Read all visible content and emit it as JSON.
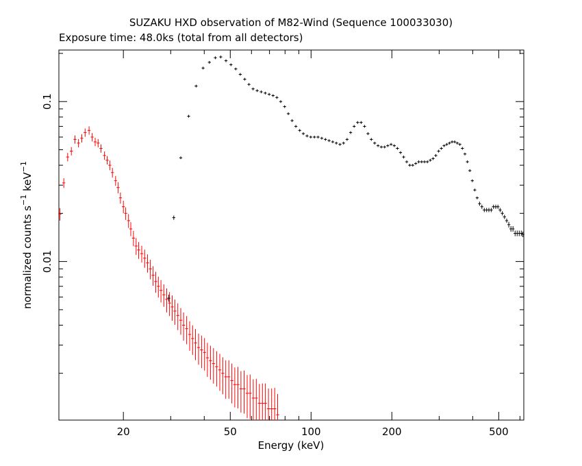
{
  "chart_data": {
    "type": "scatter",
    "title": "SUZAKU HXD observation of M82-Wind (Sequence 100033030)",
    "subtitle": "Exposure time: 48.0ks (total from all detectors)",
    "xlabel": "Energy (keV)",
    "ylabel": {
      "base": "normalized counts s",
      "sup1": "−1",
      "mid": " keV",
      "sup2": "−1"
    },
    "x_scale": "log",
    "y_scale": "log",
    "xlim": [
      11.5,
      620
    ],
    "ylim": [
      0.00102,
      0.21
    ],
    "x_ticks": [
      {
        "value": 20,
        "label": "20"
      },
      {
        "value": 50,
        "label": "50"
      },
      {
        "value": 100,
        "label": "100"
      },
      {
        "value": 200,
        "label": "200"
      },
      {
        "value": 500,
        "label": "500"
      }
    ],
    "y_ticks": [
      {
        "value": 0.01,
        "label": "0.01"
      },
      {
        "value": 0.1,
        "label": "0.1"
      }
    ],
    "grid": false,
    "series": [
      {
        "name": "",
        "color": "#ff0000",
        "kind": "pin",
        "points": [
          [
            11.6,
            0.0198,
            0.09
          ],
          [
            12.0,
            0.031,
            0.07
          ],
          [
            12.4,
            0.045,
            0.06
          ],
          [
            12.8,
            0.049,
            0.06
          ],
          [
            13.2,
            0.058,
            0.06
          ],
          [
            13.6,
            0.055,
            0.06
          ],
          [
            14.0,
            0.059,
            0.06
          ],
          [
            14.4,
            0.064,
            0.06
          ],
          [
            14.9,
            0.066,
            0.06
          ],
          [
            15.3,
            0.06,
            0.06
          ],
          [
            15.7,
            0.056,
            0.06
          ],
          [
            16.1,
            0.055,
            0.06
          ],
          [
            16.5,
            0.051,
            0.06
          ],
          [
            17.0,
            0.046,
            0.06
          ],
          [
            17.4,
            0.043,
            0.06
          ],
          [
            17.8,
            0.04,
            0.07
          ],
          [
            18.2,
            0.036,
            0.07
          ],
          [
            18.7,
            0.032,
            0.07
          ],
          [
            19.1,
            0.029,
            0.08
          ],
          [
            19.5,
            0.025,
            0.08
          ],
          [
            20.0,
            0.022,
            0.09
          ],
          [
            20.4,
            0.02,
            0.09
          ],
          [
            20.9,
            0.018,
            0.1
          ],
          [
            21.3,
            0.016,
            0.1
          ],
          [
            21.8,
            0.014,
            0.11
          ],
          [
            22.3,
            0.0125,
            0.12
          ],
          [
            22.8,
            0.0118,
            0.12
          ],
          [
            23.4,
            0.0112,
            0.12
          ],
          [
            24.0,
            0.0105,
            0.13
          ],
          [
            24.6,
            0.0098,
            0.13
          ],
          [
            25.2,
            0.009,
            0.14
          ],
          [
            25.8,
            0.0082,
            0.14
          ],
          [
            26.4,
            0.0075,
            0.15
          ],
          [
            27.0,
            0.007,
            0.15
          ],
          [
            27.6,
            0.0066,
            0.16
          ],
          [
            28.3,
            0.0062,
            0.16
          ],
          [
            29.0,
            0.0058,
            0.17
          ],
          [
            29.7,
            0.0055,
            0.17
          ],
          [
            30.4,
            0.0052,
            0.18
          ],
          [
            31.1,
            0.0049,
            0.18
          ],
          [
            31.9,
            0.0046,
            0.19
          ],
          [
            32.7,
            0.0043,
            0.19
          ],
          [
            33.5,
            0.004,
            0.2
          ],
          [
            34.4,
            0.0038,
            0.2
          ],
          [
            35.3,
            0.0035,
            0.21
          ],
          [
            36.2,
            0.0033,
            0.21
          ],
          [
            37.1,
            0.0031,
            0.22
          ],
          [
            38.1,
            0.0029,
            0.22
          ],
          [
            39.1,
            0.0028,
            0.23
          ],
          [
            40.1,
            0.0027,
            0.23
          ],
          [
            41.1,
            0.0025,
            0.24
          ],
          [
            42.2,
            0.0024,
            0.24
          ],
          [
            43.3,
            0.0023,
            0.25
          ],
          [
            44.5,
            0.0022,
            0.25
          ],
          [
            45.7,
            0.0021,
            0.26
          ],
          [
            46.9,
            0.002,
            0.26
          ],
          [
            48.1,
            0.0019,
            0.27
          ],
          [
            49.4,
            0.0019,
            0.27
          ],
          [
            50.7,
            0.0018,
            0.28
          ],
          [
            52.0,
            0.0017,
            0.28
          ],
          [
            53.4,
            0.0017,
            0.29
          ],
          [
            54.8,
            0.0016,
            0.29
          ],
          [
            56.3,
            0.0016,
            0.3
          ],
          [
            57.8,
            0.0015,
            0.3
          ],
          [
            59.3,
            0.0015,
            0.31
          ],
          [
            60.9,
            0.0014,
            0.31
          ],
          [
            62.5,
            0.0014,
            0.32
          ],
          [
            64.2,
            0.0013,
            0.32
          ],
          [
            65.9,
            0.0013,
            0.33
          ],
          [
            67.6,
            0.0013,
            0.33
          ],
          [
            69.4,
            0.0012,
            0.34
          ],
          [
            71.3,
            0.0012,
            0.34
          ],
          [
            73.2,
            0.0012,
            0.35
          ],
          [
            75.1,
            0.0011,
            0.35
          ]
        ]
      },
      {
        "name": "",
        "color": "#000000",
        "kind": "pin",
        "points": [
          [
            29.5,
            0.0059,
            0.05
          ],
          [
            30.8,
            0.0188,
            0.03
          ],
          [
            32.7,
            0.0445,
            0.02
          ],
          [
            35.0,
            0.081,
            0.02
          ],
          [
            37.3,
            0.125,
            0.02
          ],
          [
            39.6,
            0.162,
            0.02
          ],
          [
            41.8,
            0.176,
            0.02
          ],
          [
            44.0,
            0.188,
            0.02
          ],
          [
            46.1,
            0.19,
            0.02
          ],
          [
            48.2,
            0.18,
            0.02
          ],
          [
            50.3,
            0.17,
            0.02
          ],
          [
            52.4,
            0.16,
            0.02
          ],
          [
            54.5,
            0.148,
            0.02
          ],
          [
            56.6,
            0.138,
            0.02
          ],
          [
            58.7,
            0.128,
            0.02
          ],
          [
            60.8,
            0.12,
            0.02
          ],
          [
            63.0,
            0.117,
            0.02
          ],
          [
            65.2,
            0.115,
            0.02
          ],
          [
            67.5,
            0.113,
            0.02
          ],
          [
            69.8,
            0.111,
            0.02
          ],
          [
            72.2,
            0.109,
            0.02
          ],
          [
            74.6,
            0.106,
            0.02
          ],
          [
            77.1,
            0.1,
            0.02
          ],
          [
            79.7,
            0.093,
            0.02
          ],
          [
            82.3,
            0.084,
            0.02
          ],
          [
            85.0,
            0.076,
            0.02
          ],
          [
            87.8,
            0.07,
            0.02
          ],
          [
            90.7,
            0.066,
            0.02
          ],
          [
            93.6,
            0.063,
            0.02
          ],
          [
            96.6,
            0.061,
            0.02
          ],
          [
            99.7,
            0.06,
            0.02
          ],
          [
            102.9,
            0.06,
            0.02
          ],
          [
            106.2,
            0.06,
            0.02
          ],
          [
            109.6,
            0.059,
            0.02
          ],
          [
            113.1,
            0.058,
            0.02
          ],
          [
            116.7,
            0.057,
            0.02
          ],
          [
            120.4,
            0.056,
            0.02
          ],
          [
            124.2,
            0.055,
            0.02
          ],
          [
            128.1,
            0.054,
            0.02
          ],
          [
            132.1,
            0.055,
            0.02
          ],
          [
            136.2,
            0.058,
            0.02
          ],
          [
            140.4,
            0.064,
            0.02
          ],
          [
            144.7,
            0.07,
            0.02
          ],
          [
            149.1,
            0.074,
            0.02
          ],
          [
            153.6,
            0.074,
            0.02
          ],
          [
            158.2,
            0.07,
            0.02
          ],
          [
            162.9,
            0.063,
            0.02
          ],
          [
            167.7,
            0.058,
            0.02
          ],
          [
            172.6,
            0.055,
            0.02
          ],
          [
            177.6,
            0.053,
            0.02
          ],
          [
            182.7,
            0.052,
            0.02
          ],
          [
            187.9,
            0.052,
            0.02
          ],
          [
            193.2,
            0.053,
            0.02
          ],
          [
            198.6,
            0.054,
            0.02
          ],
          [
            204.1,
            0.053,
            0.02
          ],
          [
            209.7,
            0.051,
            0.02
          ],
          [
            215.4,
            0.048,
            0.02
          ],
          [
            221.2,
            0.045,
            0.02
          ],
          [
            227.1,
            0.042,
            0.02
          ],
          [
            233.1,
            0.04,
            0.02
          ],
          [
            239.2,
            0.04,
            0.02
          ],
          [
            245.4,
            0.041,
            0.02
          ],
          [
            251.7,
            0.042,
            0.02
          ],
          [
            258.1,
            0.042,
            0.02
          ],
          [
            264.6,
            0.042,
            0.02
          ],
          [
            271.2,
            0.042,
            0.02
          ],
          [
            277.9,
            0.043,
            0.02
          ],
          [
            284.7,
            0.044,
            0.02
          ],
          [
            291.6,
            0.046,
            0.02
          ],
          [
            298.6,
            0.049,
            0.02
          ],
          [
            305.7,
            0.051,
            0.02
          ],
          [
            312.9,
            0.053,
            0.02
          ],
          [
            320.2,
            0.054,
            0.02
          ],
          [
            327.6,
            0.055,
            0.02
          ],
          [
            335.1,
            0.056,
            0.02
          ],
          [
            342.7,
            0.056,
            0.02
          ],
          [
            350.4,
            0.055,
            0.02
          ],
          [
            358.2,
            0.054,
            0.02
          ],
          [
            366.1,
            0.051,
            0.02
          ],
          [
            374.1,
            0.047,
            0.02
          ],
          [
            382.2,
            0.042,
            0.02
          ],
          [
            390.4,
            0.037,
            0.02
          ],
          [
            398.7,
            0.032,
            0.02
          ],
          [
            407.1,
            0.028,
            0.02
          ],
          [
            415.6,
            0.025,
            0.02
          ],
          [
            424.2,
            0.023,
            0.03
          ],
          [
            432.9,
            0.022,
            0.03
          ],
          [
            441.7,
            0.021,
            0.03
          ],
          [
            450.6,
            0.021,
            0.03
          ],
          [
            459.6,
            0.021,
            0.03
          ],
          [
            468.7,
            0.021,
            0.03
          ],
          [
            477.9,
            0.022,
            0.03
          ],
          [
            487.2,
            0.022,
            0.03
          ],
          [
            496.6,
            0.022,
            0.03
          ],
          [
            506.1,
            0.021,
            0.03
          ],
          [
            515.7,
            0.02,
            0.03
          ],
          [
            525.4,
            0.019,
            0.03
          ],
          [
            535.2,
            0.018,
            0.03
          ],
          [
            545.1,
            0.017,
            0.04
          ],
          [
            555.1,
            0.016,
            0.04
          ],
          [
            565.2,
            0.016,
            0.04
          ],
          [
            575.4,
            0.015,
            0.04
          ],
          [
            585.7,
            0.015,
            0.04
          ],
          [
            596.1,
            0.015,
            0.04
          ],
          [
            606.6,
            0.015,
            0.04
          ],
          [
            615.0,
            0.0148,
            0.04
          ]
        ]
      }
    ]
  }
}
